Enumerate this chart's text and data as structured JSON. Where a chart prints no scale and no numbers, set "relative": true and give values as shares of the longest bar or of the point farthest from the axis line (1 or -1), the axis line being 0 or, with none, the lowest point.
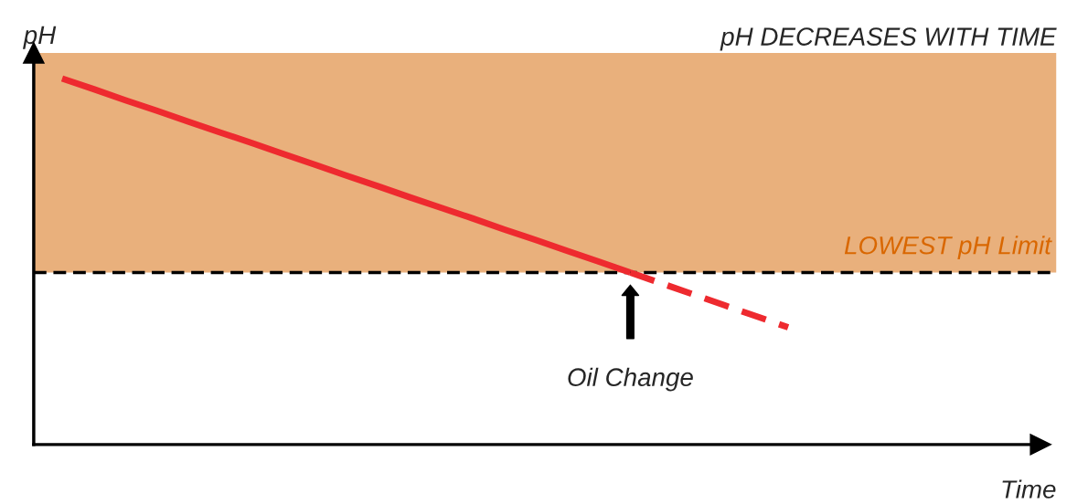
{
  "chart_data": {
    "type": "line",
    "title": "pH DECREASES WITH TIME",
    "xlabel": "Time",
    "ylabel": "pH",
    "relative": true,
    "categories": [
      null,
      null,
      null,
      null,
      null,
      null,
      null,
      null,
      null,
      null,
      null,
      null,
      null,
      null,
      null,
      null,
      null,
      null,
      null,
      null,
      null,
      null,
      null,
      null,
      null,
      null,
      null,
      null,
      null,
      null,
      null,
      null
    ],
    "series": [
      {
        "color": "#ee2a2f",
        "line_style": "solid",
        "values": [
          1.0,
          0.971,
          0.941,
          0.912,
          0.882,
          0.853,
          0.824,
          0.794,
          0.765,
          0.735,
          0.706,
          0.676,
          0.647,
          0.618,
          0.588,
          0.559,
          0.529,
          0.5,
          0.47,
          null,
          null,
          null,
          null,
          null,
          null,
          null,
          null,
          null,
          null,
          null,
          null,
          null
        ]
      },
      {
        "color": "#ee2a2f",
        "line_style": "dashed",
        "values": [
          null,
          null,
          null,
          null,
          null,
          null,
          null,
          null,
          null,
          null,
          null,
          null,
          null,
          null,
          null,
          null,
          null,
          null,
          0.47,
          0.44,
          0.41,
          0.38,
          0.35,
          0.32,
          null,
          null,
          null,
          null,
          null,
          null,
          null,
          null
        ]
      }
    ],
    "ref_lines": [
      {
        "axis": "y",
        "value": 0.47,
        "color": "#000000",
        "line_style": "dashed"
      }
    ],
    "bands": [
      {
        "axis": "y",
        "from": 0.47,
        "to": 1.07,
        "label": "LOWEST pH Limit",
        "color": "#e9b07c"
      }
    ],
    "annotations": [
      "Oil Change"
    ]
  }
}
